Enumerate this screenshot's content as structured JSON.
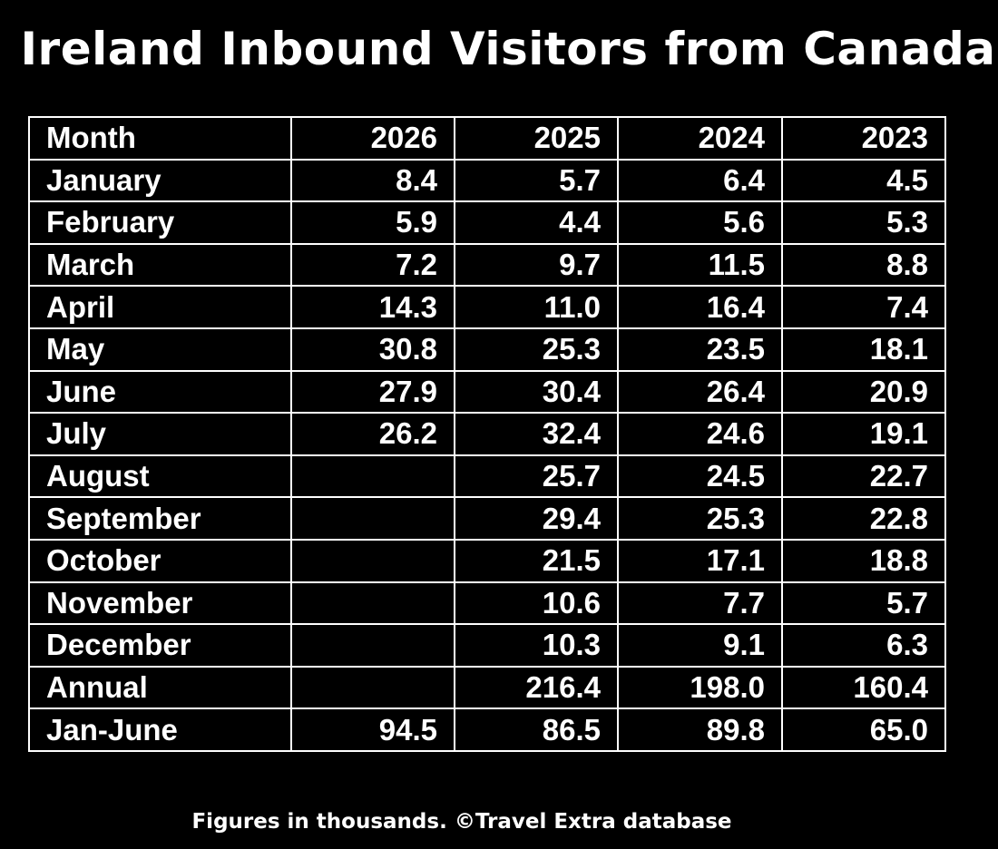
{
  "chart_data": {
    "type": "table",
    "title": "Ireland Inbound Visitors from Canada",
    "columns": [
      "Month",
      "2026",
      "2025",
      "2024",
      "2023"
    ],
    "rows": [
      [
        "January",
        "8.4",
        "5.7",
        "6.4",
        "4.5"
      ],
      [
        "February",
        "5.9",
        "4.4",
        "5.6",
        "5.3"
      ],
      [
        "March",
        "7.2",
        "9.7",
        "11.5",
        "8.8"
      ],
      [
        "April",
        "14.3",
        "11.0",
        "16.4",
        "7.4"
      ],
      [
        "May",
        "30.8",
        "25.3",
        "23.5",
        "18.1"
      ],
      [
        "June",
        "27.9",
        "30.4",
        "26.4",
        "20.9"
      ],
      [
        "July",
        "26.2",
        "32.4",
        "24.6",
        "19.1"
      ],
      [
        "August",
        "",
        "25.7",
        "24.5",
        "22.7"
      ],
      [
        "September",
        "",
        "29.4",
        "25.3",
        "22.8"
      ],
      [
        "October",
        "",
        "21.5",
        "17.1",
        "18.8"
      ],
      [
        "November",
        "",
        "10.6",
        "7.7",
        "5.7"
      ],
      [
        "December",
        "",
        "10.3",
        "9.1",
        "6.3"
      ],
      [
        "Annual",
        "",
        "216.4",
        "198.0",
        "160.4"
      ],
      [
        "Jan-June",
        "94.5",
        "86.5",
        "89.8",
        "65.0"
      ]
    ],
    "footnote": "Figures in thousands.  ©Travel Extra database"
  },
  "colors": {
    "background": "#000000",
    "text": "#ffffff",
    "grid": "#ffffff"
  }
}
